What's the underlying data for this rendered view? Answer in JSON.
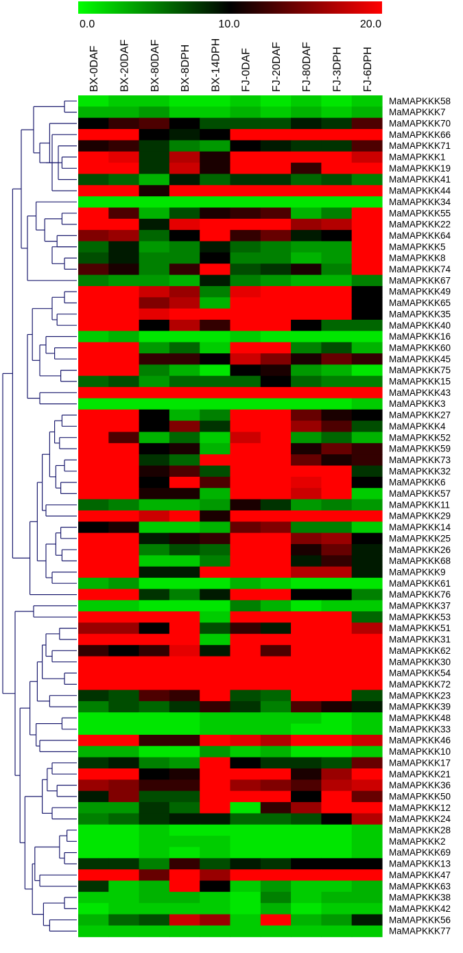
{
  "chart_data": {
    "type": "heatmap",
    "colorscale": {
      "low": "#00ff00",
      "mid": "#000000",
      "high": "#ff0000",
      "min": 0.0,
      "max": 20.0
    },
    "colorbar_ticks": [
      "0.0",
      "10.0",
      "20.0"
    ],
    "columns": [
      "BX-0DAF",
      "BX-20DAF",
      "BX-80DAF",
      "BX-8DPH",
      "BX-14DPH",
      "FJ-0DAF",
      "FJ-20DAF",
      "FJ-80DAF",
      "FJ-3DPH",
      "FJ-6DPH"
    ],
    "rows": [
      "MaMAPKKK58",
      "MaMAPKKK7",
      "MaMAPKKK70",
      "MaMAPKKK66",
      "MaMAPKKK71",
      "MaMAPKKK1",
      "MaMAPKKK19",
      "MaMAPKKK41",
      "MaMAPKKK44",
      "MaMAPKKK34",
      "MaMAPKKK55",
      "MaMAPKKK22",
      "MaMAPKKK64",
      "MaMAPKKK5",
      "MaMAPKKK8",
      "MaMAPKKK74",
      "MaMAPKKK67",
      "MaMAPKKK49",
      "MaMAPKKK65",
      "MaMAPKKK35",
      "MaMAPKKK40",
      "MaMAPKKK16",
      "MaMAPKKK60",
      "MaMAPKKK45",
      "MaMAPKKK75",
      "MaMAPKKK15",
      "MaMAPKKK43",
      "MaMAPKKK3",
      "MaMAPKKK27",
      "MaMAPKKK4",
      "MaMAPKKK52",
      "MaMAPKKK59",
      "MaMAPKKK73",
      "MaMAPKKK32",
      "MaMAPKKK6",
      "MaMAPKKK57",
      "MaMAPKKK11",
      "MaMAPKKK29",
      "MaMAPKKK14",
      "MaMAPKKK25",
      "MaMAPKKK26",
      "MaMAPKKK68",
      "MaMAPKKK9",
      "MaMAPKKK61",
      "MaMAPKKK76",
      "MaMAPKKK37",
      "MaMAPKKK53",
      "MaMAPKKK51",
      "MaMAPKKK31",
      "MaMAPKKK62",
      "MaMAPKKK30",
      "MaMAPKKK54",
      "MaMAPKKK72",
      "MaMAPKKK23",
      "MaMAPKKK39",
      "MaMAPKKK48",
      "MaMAPKKK33",
      "MaMAPKKK46",
      "MaMAPKKK10",
      "MaMAPKKK17",
      "MaMAPKKK21",
      "MaMAPKKK36",
      "MaMAPKKK50",
      "MaMAPKKK12",
      "MaMAPKKK24",
      "MaMAPKKK28",
      "MaMAPKKK2",
      "MaMAPKKK69",
      "MaMAPKKK13",
      "MaMAPKKK47",
      "MaMAPKKK63",
      "MaMAPKKK38",
      "MaMAPKKK42",
      "MaMAPKKK56",
      "MaMAPKKK77"
    ],
    "values": [
      [
        1,
        2,
        2,
        1,
        1,
        2,
        1,
        2,
        1,
        2
      ],
      [
        3,
        3,
        4,
        2,
        2,
        3,
        2,
        3,
        2,
        3
      ],
      [
        10,
        12,
        13,
        10,
        7,
        7,
        7,
        9,
        8,
        13
      ],
      [
        20,
        20,
        10,
        9,
        10,
        20,
        20,
        20,
        20,
        20
      ],
      [
        11,
        12,
        8,
        5,
        4,
        10,
        9,
        8,
        8,
        13
      ],
      [
        20,
        19,
        8,
        17,
        11,
        20,
        20,
        20,
        20,
        18
      ],
      [
        20,
        20,
        8,
        18,
        11,
        20,
        20,
        12,
        20,
        20
      ],
      [
        7,
        6,
        3,
        9,
        6,
        8,
        8,
        6,
        7,
        5
      ],
      [
        20,
        20,
        11,
        20,
        20,
        20,
        20,
        20,
        20,
        20
      ],
      [
        1,
        1,
        1,
        1,
        1,
        1,
        1,
        1,
        1,
        1
      ],
      [
        20,
        13,
        3,
        7,
        11,
        12,
        13,
        3,
        5,
        20
      ],
      [
        20,
        20,
        9,
        19,
        20,
        20,
        20,
        16,
        17,
        20
      ],
      [
        15,
        16,
        6,
        10,
        20,
        12,
        14,
        9,
        10,
        20
      ],
      [
        6,
        9,
        4,
        5,
        9,
        6,
        5,
        4,
        4,
        20
      ],
      [
        7,
        9,
        5,
        5,
        10,
        5,
        5,
        3,
        4,
        20
      ],
      [
        13,
        11,
        5,
        12,
        20,
        7,
        8,
        11,
        5,
        20
      ],
      [
        5,
        4,
        4,
        3,
        9,
        5,
        4,
        3,
        3,
        5
      ],
      [
        20,
        20,
        18,
        16,
        5,
        19,
        20,
        20,
        20,
        10
      ],
      [
        20,
        20,
        15,
        17,
        3,
        20,
        20,
        20,
        20,
        10
      ],
      [
        20,
        20,
        19,
        20,
        20,
        20,
        20,
        20,
        20,
        10
      ],
      [
        20,
        20,
        10,
        17,
        12,
        20,
        20,
        10,
        6,
        6
      ],
      [
        2,
        3,
        1,
        1,
        1,
        2,
        1,
        1,
        1,
        1
      ],
      [
        20,
        20,
        4,
        6,
        2,
        20,
        20,
        5,
        7,
        3
      ],
      [
        20,
        20,
        12,
        12,
        10,
        18,
        15,
        11,
        14,
        12
      ],
      [
        20,
        20,
        5,
        3,
        1,
        10,
        11,
        4,
        3,
        1
      ],
      [
        6,
        7,
        4,
        6,
        6,
        6,
        10,
        6,
        5,
        5
      ],
      [
        20,
        20,
        20,
        20,
        20,
        20,
        20,
        20,
        20,
        20
      ],
      [
        1,
        1,
        1,
        1,
        1,
        1,
        1,
        1,
        1,
        2
      ],
      [
        20,
        20,
        10,
        3,
        5,
        20,
        20,
        14,
        11,
        10
      ],
      [
        20,
        20,
        10,
        15,
        8,
        20,
        20,
        16,
        13,
        7
      ],
      [
        20,
        13,
        3,
        6,
        2,
        18,
        20,
        4,
        6,
        3
      ],
      [
        20,
        20,
        10,
        11,
        3,
        20,
        20,
        11,
        14,
        12
      ],
      [
        20,
        20,
        8,
        6,
        20,
        20,
        20,
        14,
        11,
        12
      ],
      [
        20,
        20,
        11,
        13,
        7,
        20,
        20,
        20,
        20,
        8
      ],
      [
        20,
        20,
        10,
        20,
        13,
        20,
        20,
        19,
        20,
        10
      ],
      [
        20,
        20,
        11,
        11,
        3,
        20,
        20,
        18,
        20,
        2
      ],
      [
        6,
        5,
        3,
        3,
        4,
        11,
        8,
        4,
        5,
        4
      ],
      [
        20,
        20,
        18,
        20,
        11,
        20,
        20,
        20,
        20,
        20
      ],
      [
        10,
        11,
        2,
        2,
        3,
        14,
        15,
        5,
        5,
        2
      ],
      [
        20,
        20,
        9,
        11,
        12,
        20,
        20,
        15,
        16,
        10
      ],
      [
        20,
        20,
        5,
        7,
        6,
        20,
        20,
        11,
        14,
        9
      ],
      [
        20,
        20,
        2,
        2,
        5,
        20,
        20,
        9,
        12,
        9
      ],
      [
        20,
        20,
        9,
        9,
        20,
        20,
        20,
        17,
        17,
        9
      ],
      [
        3,
        4,
        1,
        1,
        1,
        3,
        2,
        1,
        1,
        1
      ],
      [
        20,
        20,
        8,
        5,
        9,
        20,
        20,
        10,
        10,
        5
      ],
      [
        2,
        2,
        1,
        1,
        1,
        5,
        3,
        1,
        2,
        2
      ],
      [
        20,
        20,
        20,
        20,
        2,
        20,
        20,
        20,
        20,
        6
      ],
      [
        16,
        16,
        10,
        20,
        7,
        12,
        9,
        20,
        20,
        17
      ],
      [
        20,
        20,
        20,
        20,
        2,
        20,
        20,
        20,
        20,
        20
      ],
      [
        12,
        10,
        12,
        19,
        9,
        20,
        13,
        20,
        20,
        20
      ],
      [
        20,
        20,
        20,
        20,
        20,
        20,
        20,
        20,
        20,
        20
      ],
      [
        20,
        20,
        20,
        20,
        20,
        20,
        20,
        20,
        20,
        20
      ],
      [
        20,
        20,
        20,
        20,
        20,
        20,
        20,
        20,
        20,
        20
      ],
      [
        8,
        7,
        13,
        12,
        20,
        7,
        6,
        20,
        20,
        7
      ],
      [
        5,
        7,
        6,
        8,
        12,
        8,
        5,
        13,
        11,
        9
      ],
      [
        1,
        1,
        1,
        1,
        2,
        2,
        2,
        2,
        1,
        2
      ],
      [
        1,
        1,
        1,
        1,
        2,
        2,
        2,
        1,
        1,
        2
      ],
      [
        20,
        20,
        12,
        12,
        20,
        19,
        17,
        20,
        20,
        18
      ],
      [
        3,
        3,
        1,
        1,
        4,
        2,
        3,
        1,
        1,
        2
      ],
      [
        8,
        9,
        5,
        4,
        20,
        10,
        8,
        8,
        7,
        14
      ],
      [
        20,
        20,
        10,
        11,
        20,
        20,
        20,
        11,
        16,
        20
      ],
      [
        16,
        15,
        12,
        12,
        20,
        16,
        15,
        13,
        17,
        18
      ],
      [
        9,
        15,
        7,
        7,
        20,
        20,
        20,
        10,
        20,
        14
      ],
      [
        4,
        4,
        8,
        6,
        20,
        1,
        12,
        16,
        20,
        20
      ],
      [
        5,
        6,
        8,
        9,
        9,
        6,
        6,
        7,
        10,
        17
      ],
      [
        1,
        1,
        2,
        1,
        1,
        1,
        1,
        1,
        1,
        2
      ],
      [
        1,
        1,
        2,
        2,
        2,
        1,
        1,
        1,
        1,
        2
      ],
      [
        1,
        1,
        2,
        1,
        2,
        1,
        1,
        1,
        1,
        2
      ],
      [
        8,
        8,
        5,
        12,
        7,
        9,
        8,
        10,
        10,
        10
      ],
      [
        20,
        20,
        14,
        20,
        16,
        20,
        20,
        20,
        20,
        20
      ],
      [
        8,
        2,
        3,
        20,
        10,
        2,
        4,
        2,
        2,
        3
      ],
      [
        2,
        2,
        3,
        3,
        2,
        1,
        5,
        2,
        3,
        3
      ],
      [
        1,
        2,
        2,
        2,
        2,
        1,
        3,
        1,
        2,
        2
      ],
      [
        3,
        6,
        7,
        18,
        16,
        2,
        20,
        3,
        4,
        9
      ],
      [
        2,
        2,
        2,
        2,
        2,
        2,
        2,
        2,
        2,
        2
      ]
    ],
    "dendrogram": {
      "orientation": "left",
      "leaves": 75,
      "merges": [
        [
          0,
          1,
          0.1
        ],
        [
          5,
          6,
          0.12
        ],
        [
          4,
          7,
          0.15
        ],
        [
          3,
          8,
          0.2
        ],
        [
          2,
          3,
          0.22
        ],
        [
          5,
          4,
          0.25
        ],
        [
          2,
          5,
          0.3
        ],
        [
          0,
          2,
          0.35
        ],
        [
          10,
          11,
          0.12
        ],
        [
          12,
          13,
          0.16
        ],
        [
          14,
          15,
          0.1
        ],
        [
          13,
          14,
          0.2
        ],
        [
          10,
          12,
          0.26
        ],
        [
          9,
          10,
          0.33
        ],
        [
          16,
          9,
          0.4
        ],
        [
          17,
          18,
          0.1
        ],
        [
          19,
          20,
          0.16
        ],
        [
          17,
          19,
          0.2
        ],
        [
          22,
          23,
          0.18
        ],
        [
          21,
          22,
          0.25
        ],
        [
          24,
          25,
          0.13
        ],
        [
          21,
          24,
          0.3
        ],
        [
          17,
          21,
          0.36
        ],
        [
          26,
          27,
          0.3
        ],
        [
          17,
          26,
          0.4
        ],
        [
          0,
          16,
          0.45
        ],
        [
          28,
          29,
          0.12
        ],
        [
          30,
          31,
          0.14
        ],
        [
          28,
          30,
          0.18
        ],
        [
          32,
          33,
          0.1
        ],
        [
          34,
          35,
          0.13
        ],
        [
          32,
          34,
          0.17
        ],
        [
          28,
          32,
          0.22
        ],
        [
          36,
          37,
          0.25
        ],
        [
          28,
          36,
          0.28
        ],
        [
          38,
          39,
          0.13
        ],
        [
          40,
          41,
          0.12
        ],
        [
          38,
          40,
          0.17
        ],
        [
          42,
          43,
          0.2
        ],
        [
          38,
          42,
          0.25
        ],
        [
          28,
          38,
          0.32
        ],
        [
          44,
          28,
          0.38
        ],
        [
          0,
          44,
          0.52
        ],
        [
          45,
          46,
          0.35
        ],
        [
          47,
          48,
          0.14
        ],
        [
          49,
          50,
          0.2
        ],
        [
          47,
          49,
          0.25
        ],
        [
          51,
          52,
          0.1
        ],
        [
          47,
          51,
          0.28
        ],
        [
          53,
          54,
          0.22
        ],
        [
          47,
          53,
          0.32
        ],
        [
          55,
          56,
          0.12
        ],
        [
          57,
          58,
          0.3
        ],
        [
          55,
          57,
          0.33
        ],
        [
          47,
          55,
          0.38
        ],
        [
          59,
          60,
          0.2
        ],
        [
          61,
          62,
          0.16
        ],
        [
          59,
          61,
          0.24
        ],
        [
          63,
          64,
          0.2
        ],
        [
          59,
          63,
          0.28
        ],
        [
          65,
          66,
          0.08
        ],
        [
          67,
          68,
          0.1
        ],
        [
          65,
          67,
          0.14
        ],
        [
          69,
          70,
          0.3
        ],
        [
          65,
          69,
          0.34
        ],
        [
          71,
          72,
          0.1
        ],
        [
          73,
          74,
          0.22
        ],
        [
          71,
          73,
          0.27
        ],
        [
          65,
          71,
          0.36
        ],
        [
          59,
          65,
          0.42
        ],
        [
          47,
          59,
          0.46
        ],
        [
          45,
          47,
          0.5
        ],
        [
          0,
          45,
          0.6
        ]
      ]
    }
  }
}
